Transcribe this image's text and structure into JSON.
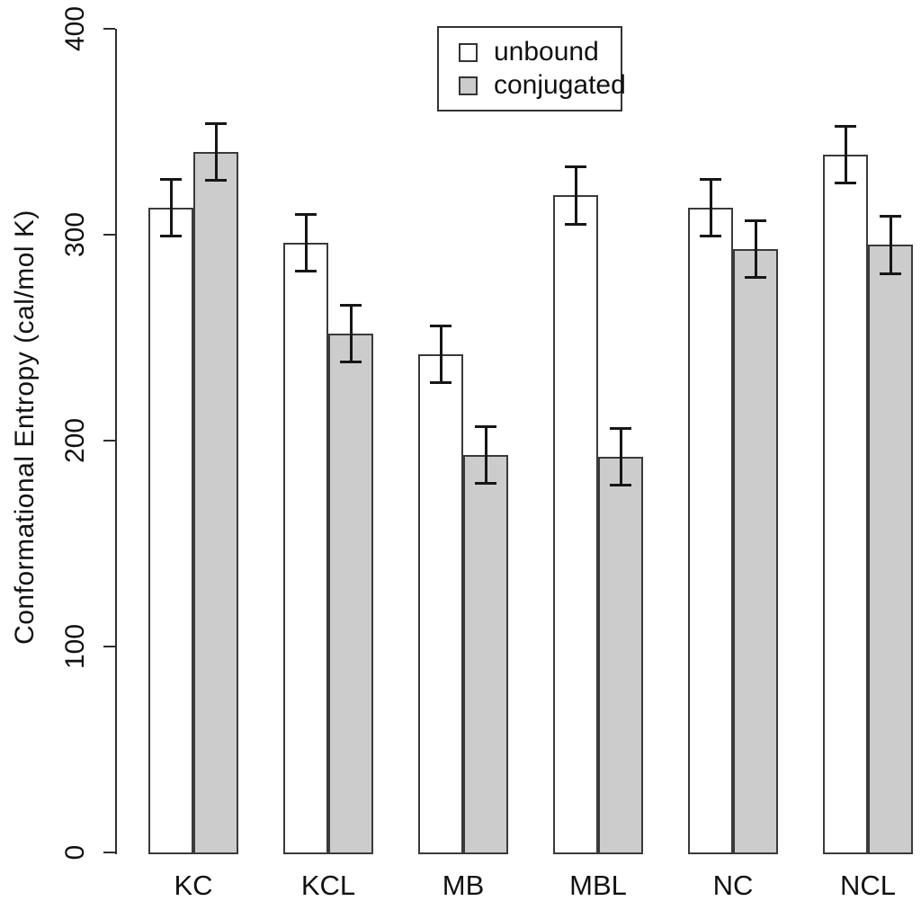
{
  "figure": {
    "background": "#ffffff",
    "text_color": "#111111"
  },
  "chart_data": {
    "type": "bar",
    "title": "",
    "xlabel": "",
    "ylabel": "Conformational Entropy (cal/mol K)",
    "categories": [
      "KC",
      "KCL",
      "MB",
      "MBL",
      "NC",
      "NCL"
    ],
    "series": [
      {
        "name": "unbound",
        "color": "#ffffff",
        "values": [
          313,
          296,
          242,
          319,
          313,
          339
        ],
        "errors": [
          14,
          14,
          14,
          14,
          14,
          14
        ]
      },
      {
        "name": "conjugated",
        "color": "#cccccc",
        "values": [
          340,
          252,
          193,
          192,
          293,
          295
        ],
        "errors": [
          14,
          14,
          14,
          14,
          14,
          14
        ]
      }
    ],
    "ylim": [
      0,
      400
    ],
    "yticks": [
      0,
      100,
      200,
      300,
      400
    ],
    "grid": false,
    "legend_position": "top-center",
    "bar_border_color": "#3a3a3a",
    "error_bar_color": "#161616"
  }
}
